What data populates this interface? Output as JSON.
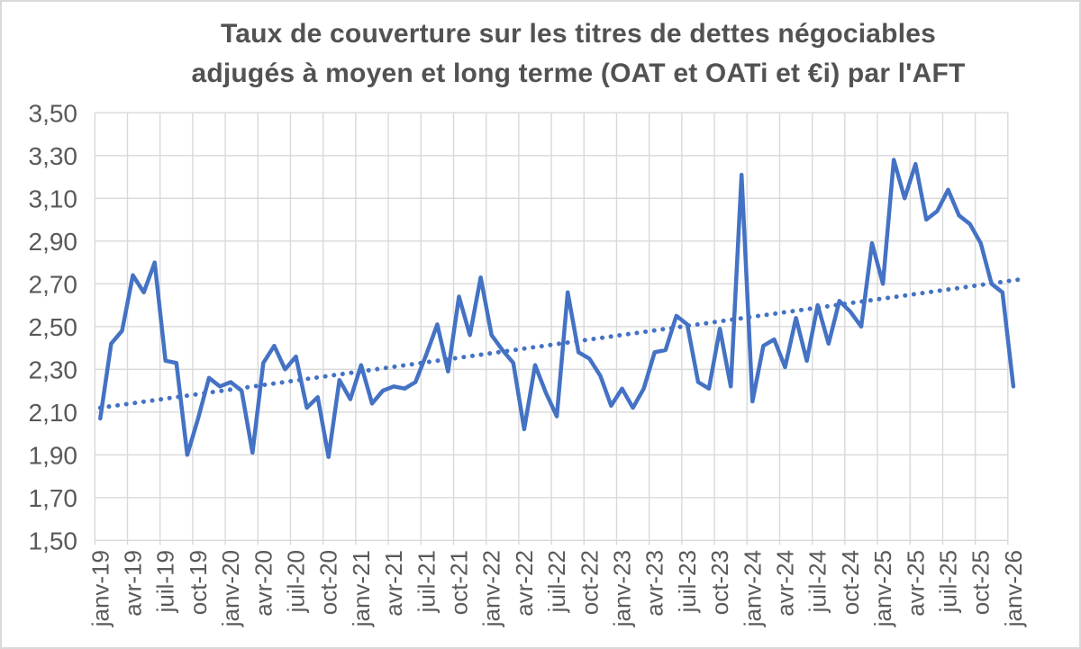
{
  "chart_data": {
    "type": "line",
    "title": "Taux de couverture sur les titres de dettes négociables adjugés à moyen et long terme (OAT et OATi et €i) par l'AFT",
    "title_line1": "Taux de couverture sur les titres de dettes négociables",
    "title_line2": "adjugés à moyen et long terme (OAT et OATi et €i) par l'AFT",
    "x": [
      "janv-19",
      "févr-19",
      "mars-19",
      "avr-19",
      "mai-19",
      "juin-19",
      "juil-19",
      "août-19",
      "sept-19",
      "oct-19",
      "nov-19",
      "déc-19",
      "janv-20",
      "févr-20",
      "mars-20",
      "avr-20",
      "mai-20",
      "juin-20",
      "juil-20",
      "août-20",
      "sept-20",
      "oct-20",
      "nov-20",
      "déc-20",
      "janv-21",
      "févr-21",
      "mars-21",
      "avr-21",
      "mai-21",
      "juin-21",
      "juil-21",
      "août-21",
      "sept-21",
      "oct-21",
      "nov-21",
      "déc-21",
      "janv-22",
      "févr-22",
      "mars-22",
      "avr-22",
      "mai-22",
      "juin-22",
      "juil-22",
      "août-22",
      "sept-22",
      "oct-22",
      "nov-22",
      "déc-22",
      "janv-23",
      "févr-23",
      "mars-23",
      "avr-23",
      "mai-23",
      "juin-23",
      "juil-23",
      "août-23",
      "sept-23",
      "oct-23",
      "nov-23",
      "déc-23",
      "janv-24",
      "févr-24",
      "mars-24",
      "avr-24",
      "mai-24",
      "juin-24",
      "juil-24",
      "août-24",
      "sept-24",
      "oct-24",
      "nov-24",
      "déc-24",
      "janv-25",
      "févr-25",
      "mars-25",
      "avr-25",
      "mai-25",
      "juin-25",
      "juil-25",
      "août-25",
      "sept-25",
      "oct-25",
      "nov-25",
      "déc-25",
      "janv-26"
    ],
    "values": [
      2.07,
      2.42,
      2.48,
      2.74,
      2.66,
      2.8,
      2.34,
      2.33,
      1.9,
      2.07,
      2.26,
      2.22,
      2.24,
      2.2,
      1.91,
      2.33,
      2.41,
      2.3,
      2.36,
      2.12,
      2.17,
      1.89,
      2.25,
      2.16,
      2.32,
      2.14,
      2.2,
      2.22,
      2.21,
      2.24,
      2.37,
      2.51,
      2.29,
      2.64,
      2.46,
      2.73,
      2.46,
      2.39,
      2.33,
      2.02,
      2.32,
      2.19,
      2.08,
      2.66,
      2.38,
      2.35,
      2.27,
      2.13,
      2.21,
      2.12,
      2.21,
      2.38,
      2.39,
      2.55,
      2.51,
      2.24,
      2.21,
      2.49,
      2.22,
      3.21,
      2.15,
      2.41,
      2.44,
      2.31,
      2.54,
      2.34,
      2.6,
      2.42,
      2.62,
      2.57,
      2.5,
      2.89,
      2.7,
      3.28,
      3.1,
      3.26,
      3.0,
      3.04,
      3.14,
      3.02,
      2.98,
      2.89,
      2.7,
      2.66,
      2.22
    ],
    "x_tick_labels": [
      "janv-19",
      "avr-19",
      "juil-19",
      "oct-19",
      "janv-20",
      "avr-20",
      "juil-20",
      "oct-20",
      "janv-21",
      "avr-21",
      "juil-21",
      "oct-21",
      "janv-22",
      "avr-22",
      "juil-22",
      "oct-22",
      "janv-23",
      "avr-23",
      "juil-23",
      "oct-23",
      "janv-24",
      "avr-24",
      "juil-24",
      "oct-24",
      "janv-25",
      "avr-25",
      "juil-25",
      "oct-25",
      "janv-26"
    ],
    "y_ticks": [
      "3,50",
      "3,30",
      "3,10",
      "2,90",
      "2,70",
      "2,50",
      "2,30",
      "2,10",
      "1,90",
      "1,70",
      "1,50"
    ],
    "ylim": [
      1.5,
      3.5
    ],
    "y_step": 0.2,
    "grid": true,
    "legend_position": "none",
    "trendline": {
      "style": "dotted",
      "start": 2.12,
      "end": 2.72
    },
    "colors": {
      "series": "#4472C4",
      "grid": "#D9D9D9",
      "axis_text": "#595959",
      "title_text": "#525252",
      "background": "#FFFFFF",
      "frame_border": "#D9D9D9"
    }
  }
}
